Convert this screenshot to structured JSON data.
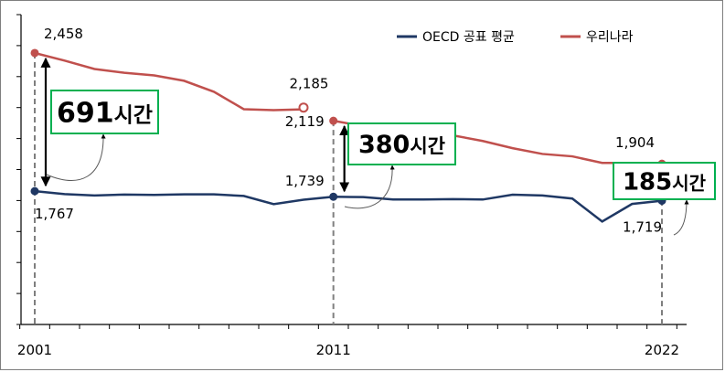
{
  "chart_data": {
    "type": "line",
    "title": "",
    "xlabel": "",
    "ylabel": "",
    "x": [
      2001,
      2002,
      2003,
      2004,
      2005,
      2006,
      2007,
      2008,
      2009,
      2010,
      2011,
      2012,
      2013,
      2014,
      2015,
      2016,
      2017,
      2018,
      2019,
      2020,
      2021,
      2022
    ],
    "x_tick_labels": [
      "2001",
      "2011",
      "2022"
    ],
    "ylim": [
      1100,
      2650
    ],
    "grid": false,
    "legend_position": "top-right",
    "series": [
      {
        "name": "OECD 공표 평균",
        "color": "#1f3864",
        "values": [
          1767,
          1752,
          1745,
          1750,
          1748,
          1751,
          1751,
          1743,
          1702,
          1724,
          1739,
          1737,
          1725,
          1725,
          1727,
          1725,
          1749,
          1745,
          1730,
          1615,
          1703,
          1719
        ]
      },
      {
        "name": "우리나라",
        "color": "#c0504d",
        "values": [
          2458,
          2420,
          2378,
          2359,
          2346,
          2319,
          2264,
          2177,
          2172,
          2176,
          2119,
          2092,
          2063,
          2035,
          2046,
          2018,
          1982,
          1953,
          1941,
          1908,
          1908,
          1904
        ]
      }
    ],
    "extra_points": [
      {
        "series": "우리나라",
        "x": 2010,
        "value": 2185,
        "label": "2,185",
        "style": "hollow"
      }
    ],
    "point_labels": [
      {
        "series": "우리나라",
        "x": 2001,
        "label": "2,458"
      },
      {
        "series": "OECD 공표 평균",
        "x": 2001,
        "label": "1,767"
      },
      {
        "series": "우리나라",
        "x": 2011,
        "label": "2,119"
      },
      {
        "series": "OECD 공표 평균",
        "x": 2011,
        "label": "1,739"
      },
      {
        "series": "우리나라",
        "x": 2022,
        "label": "1,904"
      },
      {
        "series": "OECD 공표 평균",
        "x": 2022,
        "label": "1,719"
      }
    ],
    "gap_annotations": [
      {
        "x": 2001,
        "label": "691시간",
        "value": "691",
        "unit": "시간"
      },
      {
        "x": 2011,
        "label": "380시간",
        "value": "380",
        "unit": "시간"
      },
      {
        "x": 2022,
        "label": "185시간",
        "value": "185",
        "unit": "시간"
      }
    ],
    "annotation_box_color": "#00b050"
  }
}
